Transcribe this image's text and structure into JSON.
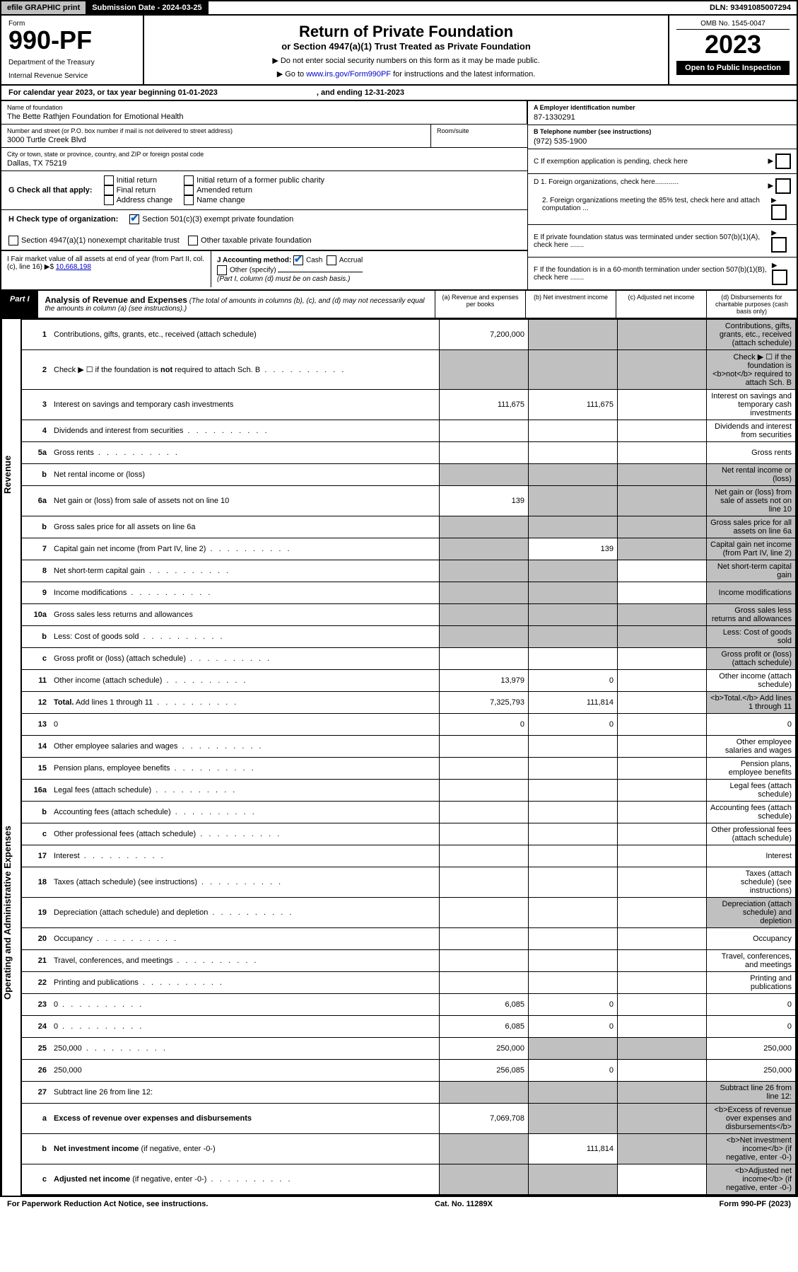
{
  "top": {
    "efile": "efile GRAPHIC print",
    "sublabel": "Submission Date - 2024-03-25",
    "dln": "DLN: 93491085007294"
  },
  "head": {
    "form": "Form",
    "formno": "990-PF",
    "dept": "Department of the Treasury",
    "irs": "Internal Revenue Service",
    "title": "Return of Private Foundation",
    "sub": "or Section 4947(a)(1) Trust Treated as Private Foundation",
    "note1": "▶ Do not enter social security numbers on this form as it may be made public.",
    "note2": "▶ Go to ",
    "link": "www.irs.gov/Form990PF",
    "note2b": " for instructions and the latest information.",
    "omb": "OMB No. 1545-0047",
    "year": "2023",
    "inspect": "Open to Public Inspection"
  },
  "cal": {
    "text": "For calendar year 2023, or tax year beginning 01-01-2023",
    "end": ", and ending 12-31-2023"
  },
  "info": {
    "name_lbl": "Name of foundation",
    "name": "The Bette Rathjen Foundation for Emotional Health",
    "addr_lbl": "Number and street (or P.O. box number if mail is not delivered to street address)",
    "addr": "3000 Turtle Creek Blvd",
    "room_lbl": "Room/suite",
    "city_lbl": "City or town, state or province, country, and ZIP or foreign postal code",
    "city": "Dallas, TX  75219",
    "a_lbl": "A Employer identification number",
    "a": "87-1330291",
    "b_lbl": "B Telephone number (see instructions)",
    "b": "(972) 535-1900",
    "c": "C If exemption application is pending, check here",
    "d1": "D 1. Foreign organizations, check here............",
    "d2": "2. Foreign organizations meeting the 85% test, check here and attach computation ...",
    "e": "E  If private foundation status was terminated under section 507(b)(1)(A), check here .......",
    "f": "F  If the foundation is in a 60-month termination under section 507(b)(1)(B), check here .......",
    "g": "G Check all that apply:",
    "g1": "Initial return",
    "g2": "Final return",
    "g3": "Address change",
    "g4": "Initial return of a former public charity",
    "g5": "Amended return",
    "g6": "Name change",
    "h": "H Check type of organization:",
    "h1": "Section 501(c)(3) exempt private foundation",
    "h2": "Section 4947(a)(1) nonexempt charitable trust",
    "h3": "Other taxable private foundation",
    "i": "I Fair market value of all assets at end of year (from Part II, col. (c), line 16)",
    "i_tri": "▶$",
    "i_amt": "10,668,198",
    "j": "J Accounting method:",
    "j1": "Cash",
    "j2": "Accrual",
    "j3": "Other (specify)",
    "j4": "(Part I, column (d) must be on cash basis.)"
  },
  "part1": {
    "label": "Part I",
    "title": "Analysis of Revenue and Expenses",
    "note": "(The total of amounts in columns (b), (c), and (d) may not necessarily equal the amounts in column (a) (see instructions).)",
    "ca": "(a)   Revenue and expenses per books",
    "cb": "(b)   Net investment income",
    "cc": "(c)   Adjusted net income",
    "cd": "(d)  Disbursements for charitable purposes (cash basis only)"
  },
  "sides": {
    "rev": "Revenue",
    "exp": "Operating and Administrative Expenses"
  },
  "rows": [
    {
      "n": "1",
      "d": "Contributions, gifts, grants, etc., received (attach schedule)",
      "a": "7,200,000",
      "grey_bcd": true
    },
    {
      "n": "2",
      "d": "Check ▶ ☐ if the foundation is <b>not</b> required to attach Sch. B",
      "dots": true,
      "grey_all": true,
      "no_amt": true
    },
    {
      "n": "3",
      "d": "Interest on savings and temporary cash investments",
      "a": "111,675",
      "b": "111,675"
    },
    {
      "n": "4",
      "d": "Dividends and interest from securities",
      "dots": true
    },
    {
      "n": "5a",
      "d": "Gross rents",
      "dots": true
    },
    {
      "n": "b",
      "d": "Net rental income or (loss)",
      "grey_all": true,
      "no_amt": true,
      "underline": true
    },
    {
      "n": "6a",
      "d": "Net gain or (loss) from sale of assets not on line 10",
      "a": "139",
      "grey_bcd": true
    },
    {
      "n": "b",
      "d": "Gross sales price for all assets on line 6a",
      "grey_all": true,
      "no_amt": true,
      "underline": true
    },
    {
      "n": "7",
      "d": "Capital gain net income (from Part IV, line 2)",
      "dots": true,
      "grey_a": true,
      "b": "139",
      "grey_cd": true
    },
    {
      "n": "8",
      "d": "Net short-term capital gain",
      "dots": true,
      "grey_ab": true,
      "grey_d": true
    },
    {
      "n": "9",
      "d": "Income modifications",
      "dots": true,
      "grey_ab": true,
      "grey_d": true
    },
    {
      "n": "10a",
      "d": "Gross sales less returns and allowances",
      "grey_all": true,
      "no_amt": true,
      "underline": true
    },
    {
      "n": "b",
      "d": "Less: Cost of goods sold",
      "dots": true,
      "grey_all": true,
      "no_amt": true,
      "underline": true
    },
    {
      "n": "c",
      "d": "Gross profit or (loss) (attach schedule)",
      "dots": true,
      "grey_d": true
    },
    {
      "n": "11",
      "d": "Other income (attach schedule)",
      "dots": true,
      "a": "13,979",
      "b": "0"
    },
    {
      "n": "12",
      "d": "<b>Total.</b> Add lines 1 through 11",
      "dots": true,
      "a": "7,325,793",
      "b": "111,814",
      "grey_d": true
    },
    {
      "n": "13",
      "d": "0",
      "a": "0",
      "b": "0"
    },
    {
      "n": "14",
      "d": "Other employee salaries and wages",
      "dots": true
    },
    {
      "n": "15",
      "d": "Pension plans, employee benefits",
      "dots": true
    },
    {
      "n": "16a",
      "d": "Legal fees (attach schedule)",
      "dots": true
    },
    {
      "n": "b",
      "d": "Accounting fees (attach schedule)",
      "dots": true
    },
    {
      "n": "c",
      "d": "Other professional fees (attach schedule)",
      "dots": true
    },
    {
      "n": "17",
      "d": "Interest",
      "dots": true
    },
    {
      "n": "18",
      "d": "Taxes (attach schedule) (see instructions)",
      "dots": true
    },
    {
      "n": "19",
      "d": "Depreciation (attach schedule) and depletion",
      "dots": true,
      "grey_d": true
    },
    {
      "n": "20",
      "d": "Occupancy",
      "dots": true
    },
    {
      "n": "21",
      "d": "Travel, conferences, and meetings",
      "dots": true
    },
    {
      "n": "22",
      "d": "Printing and publications",
      "dots": true
    },
    {
      "n": "23",
      "d": "0",
      "dots": true,
      "a": "6,085",
      "b": "0"
    },
    {
      "n": "24",
      "d": "0",
      "dots": true,
      "a": "6,085",
      "b": "0"
    },
    {
      "n": "25",
      "d": "250,000",
      "dots": true,
      "a": "250,000",
      "grey_bc": true
    },
    {
      "n": "26",
      "d": "250,000",
      "a": "256,085",
      "b": "0"
    },
    {
      "n": "27",
      "d": "Subtract line 26 from line 12:",
      "grey_all_amt": true
    },
    {
      "n": "a",
      "d": "<b>Excess of revenue over expenses and disbursements</b>",
      "a": "7,069,708",
      "grey_bcd": true
    },
    {
      "n": "b",
      "d": "<b>Net investment income</b> (if negative, enter -0-)",
      "grey_a": true,
      "b": "111,814",
      "grey_cd": true
    },
    {
      "n": "c",
      "d": "<b>Adjusted net income</b> (if negative, enter -0-)",
      "dots": true,
      "grey_ab": true,
      "grey_d": true
    }
  ],
  "footer": {
    "left": "For Paperwork Reduction Act Notice, see instructions.",
    "mid": "Cat. No. 11289X",
    "right": "Form 990-PF (2023)"
  }
}
